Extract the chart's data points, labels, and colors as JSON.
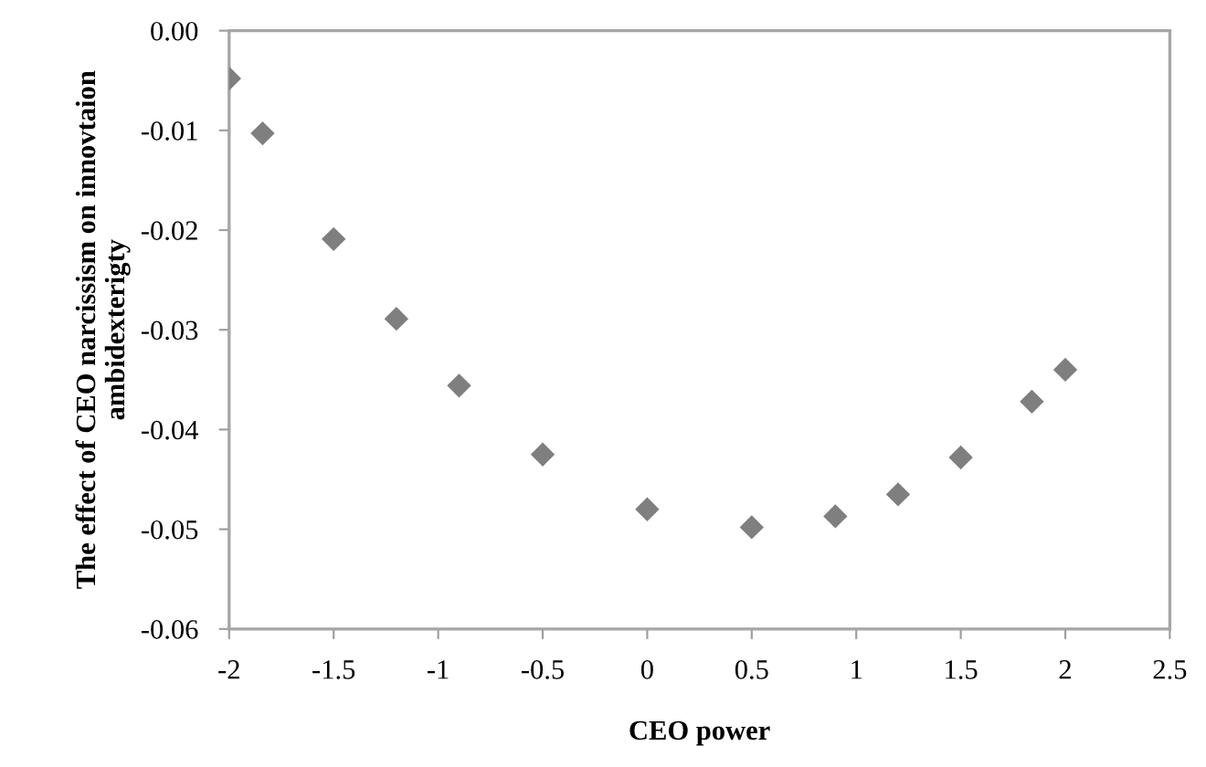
{
  "chart_data": {
    "type": "scatter",
    "xlabel": "CEO power",
    "ylabel": "The effect of CEO narcissism on innovtaion ambidexterigty",
    "x": [
      -2,
      -1.84,
      -1.5,
      -1.2,
      -0.9,
      -0.5,
      0,
      0.5,
      0.9,
      1.2,
      1.5,
      1.84,
      2
    ],
    "series": [
      {
        "color": "#7f7f7f",
        "values": [
          -0.0048,
          -0.0103,
          -0.0209,
          -0.0289,
          -0.0356,
          -0.0425,
          -0.048,
          -0.0498,
          -0.0487,
          -0.0465,
          -0.0428,
          -0.0372,
          -0.034
        ]
      }
    ],
    "marker": "diamond",
    "grid": false,
    "legend": false,
    "xlim": [
      -2,
      2.5
    ],
    "xticks": [
      -2,
      -1.5,
      -1,
      -0.5,
      0,
      0.5,
      1,
      1.5,
      2,
      2.5
    ],
    "ylim": [
      -0.06,
      0
    ],
    "yticks": [
      {
        "value": 0,
        "label": "0.00"
      },
      {
        "value": -0.01,
        "label": "-0.01"
      },
      {
        "value": -0.02,
        "label": "-0.02"
      },
      {
        "value": -0.03,
        "label": "-0.03"
      },
      {
        "value": -0.04,
        "label": "-0.04"
      },
      {
        "value": -0.05,
        "label": "-0.05"
      },
      {
        "value": -0.06,
        "label": "-0.06"
      }
    ]
  }
}
